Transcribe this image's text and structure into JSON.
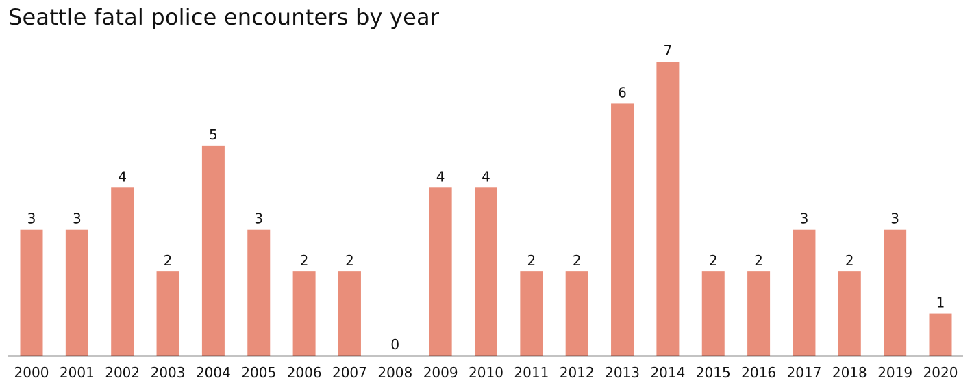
{
  "chart_data": {
    "type": "bar",
    "title": "Seattle fatal police encounters by year",
    "xlabel": "",
    "ylabel": "",
    "categories": [
      "2000",
      "2001",
      "2002",
      "2003",
      "2004",
      "2005",
      "2006",
      "2007",
      "2008",
      "2009",
      "2010",
      "2011",
      "2012",
      "2013",
      "2014",
      "2015",
      "2016",
      "2017",
      "2018",
      "2019",
      "2020"
    ],
    "values": [
      3,
      3,
      4,
      2,
      5,
      3,
      2,
      2,
      0,
      4,
      4,
      2,
      2,
      6,
      7,
      2,
      2,
      3,
      2,
      3,
      1
    ],
    "ylim": [
      0,
      7
    ],
    "grid": false,
    "legend": "none",
    "bar_color": "#E98E7A",
    "axis_color": "#111111"
  }
}
